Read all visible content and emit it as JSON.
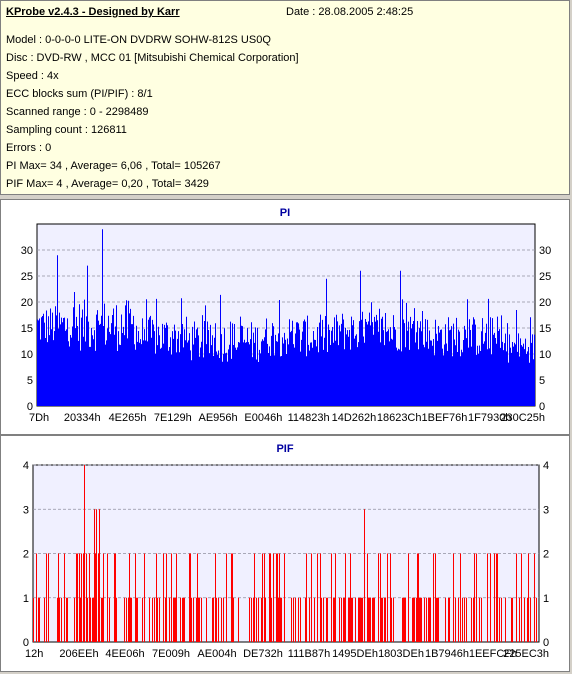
{
  "info": {
    "title": "KProbe v2.4.3 - Designed by Karr",
    "date": "Date : 28.08.2005 2:48:25",
    "lines": [
      "Model : 0-0-0-0 LITE-ON DVDRW SOHW-812S  US0Q",
      "Disc : DVD-RW , MCC 01 [Mitsubishi Chemical Corporation]",
      "Speed : 4x",
      "ECC blocks sum (PI/PIF) : 8/1",
      "Scanned range : 0 - 2298489",
      "Sampling count : 126811",
      "Errors : 0",
      "PI Max= 34 , Average= 6,06 , Total= 105267",
      "PIF Max= 4 , Average= 0,20 , Total= 3429"
    ]
  },
  "colors": {
    "pi": "#0000ff",
    "pif": "#ff0000",
    "title": "#0000a0",
    "plot_bg": "#f0f0ff",
    "grid": "#9090a0"
  },
  "chart_data": [
    {
      "type": "bar",
      "title": "PI",
      "ylim": [
        0,
        35
      ],
      "yticks": [
        "0",
        "5",
        "10",
        "15",
        "20",
        "25",
        "30"
      ],
      "xticks": [
        "7Dh",
        "20334h",
        "4E265h",
        "7E129h",
        "AE956h",
        "E0046h",
        "114823h",
        "14D262h",
        "18623Ch",
        "1BEF76h",
        "1F7930h",
        "230C25h"
      ],
      "bands": [
        {
          "from": 0.0,
          "to": 0.07,
          "base": 15,
          "spread": 4
        },
        {
          "from": 0.07,
          "to": 0.2,
          "base": 15,
          "spread": 5
        },
        {
          "from": 0.2,
          "to": 0.3,
          "base": 13,
          "spread": 4
        },
        {
          "from": 0.3,
          "to": 0.45,
          "base": 12,
          "spread": 4
        },
        {
          "from": 0.45,
          "to": 0.6,
          "base": 13,
          "spread": 4
        },
        {
          "from": 0.6,
          "to": 0.78,
          "base": 14,
          "spread": 4
        },
        {
          "from": 0.78,
          "to": 0.93,
          "base": 13,
          "spread": 4
        },
        {
          "from": 0.93,
          "to": 1.0,
          "base": 11,
          "spread": 3
        }
      ],
      "peaks": [
        {
          "at": 0.13,
          "value": 34
        },
        {
          "at": 0.04,
          "value": 29
        },
        {
          "at": 0.65,
          "value": 26
        },
        {
          "at": 0.73,
          "value": 26
        },
        {
          "at": 0.1,
          "value": 27
        }
      ]
    },
    {
      "type": "bar",
      "title": "PIF",
      "ylim": [
        0,
        4
      ],
      "yticks": [
        "0",
        "1",
        "2",
        "3",
        "4"
      ],
      "xticks": [
        "12h",
        "206EEh",
        "4EE06h",
        "7E009h",
        "AE004h",
        "DE732h",
        "111B87h",
        "1495DEh",
        "1803DEh",
        "1B7946h",
        "1EEFCFh",
        "225EC3h"
      ],
      "peaks": [
        {
          "at": 0.1,
          "value": 4
        },
        {
          "at": 0.12,
          "value": 3
        },
        {
          "at": 0.125,
          "value": 3
        },
        {
          "at": 0.13,
          "value": 3
        },
        {
          "at": 0.655,
          "value": 3
        }
      ]
    }
  ]
}
